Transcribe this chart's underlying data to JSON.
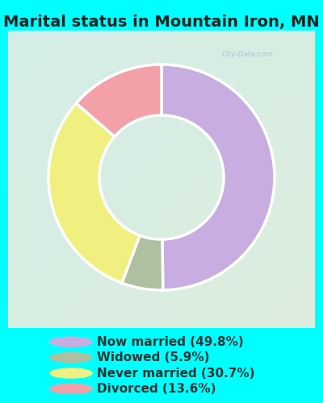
{
  "title": "Marital status in Mountain Iron, MN",
  "slices": [
    49.8,
    5.9,
    30.7,
    13.6
  ],
  "labels": [
    "Now married (49.8%)",
    "Widowed (5.9%)",
    "Never married (30.7%)",
    "Divorced (13.6%)"
  ],
  "colors": [
    "#c8aee0",
    "#aec0a0",
    "#f0f080",
    "#f4a0a8"
  ],
  "bg_color": "#00FFFF",
  "chart_bg_color_tl": "#d4ede8",
  "chart_bg_color_br": "#ddeedd",
  "donut_width": 0.45,
  "title_fontsize": 14,
  "legend_fontsize": 11,
  "start_angle": 90,
  "watermark": "City-Data.com"
}
